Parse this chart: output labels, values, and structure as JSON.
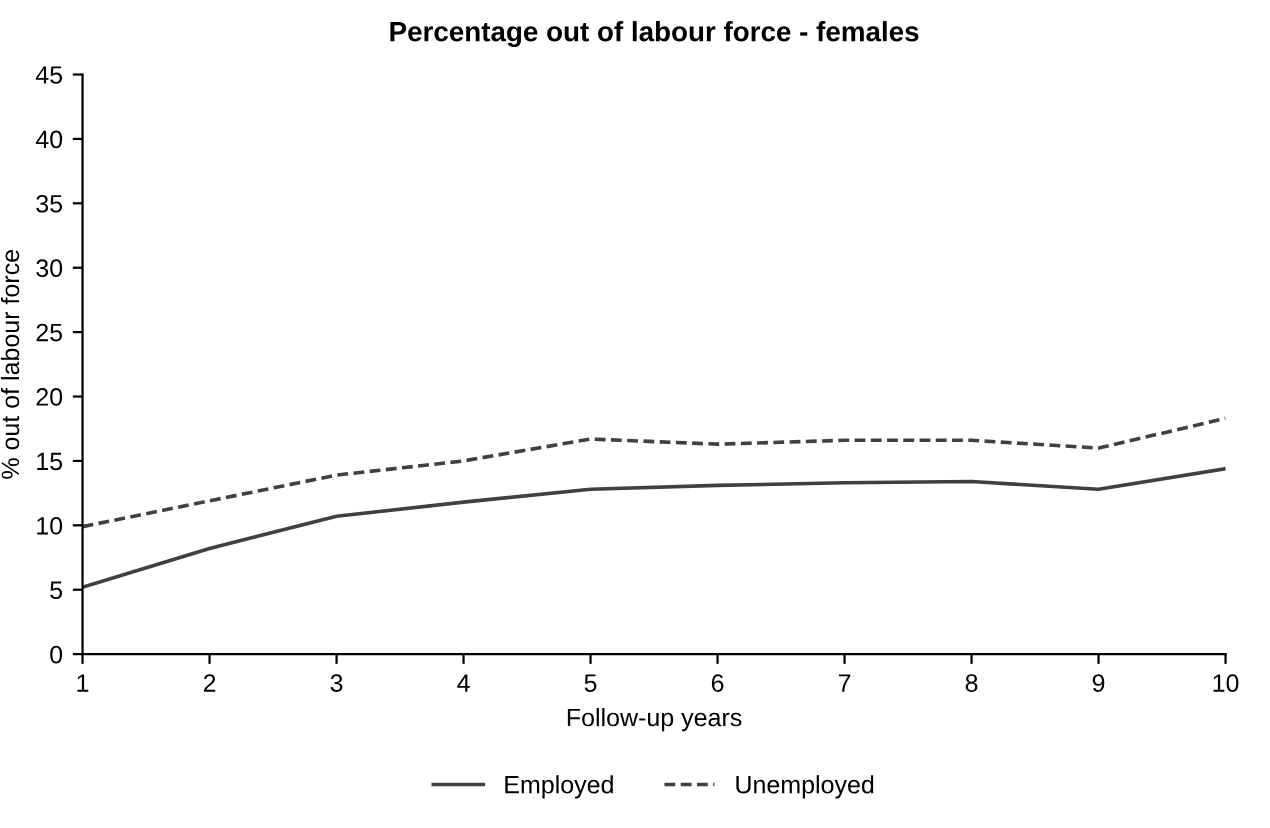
{
  "chart_data": {
    "type": "line",
    "title": "Percentage out of labour force - females",
    "xlabel": "Follow-up years",
    "ylabel": "% out of labour force",
    "x": [
      1,
      2,
      3,
      4,
      5,
      6,
      7,
      8,
      9,
      10
    ],
    "series": [
      {
        "name": "Employed",
        "color": "#404040",
        "line_style": "solid",
        "values": [
          5.2,
          8.2,
          10.7,
          11.8,
          12.8,
          13.1,
          13.3,
          13.4,
          12.8,
          14.4
        ]
      },
      {
        "name": "Unemployed",
        "color": "#404040",
        "line_style": "dashed",
        "values": [
          9.9,
          11.9,
          13.9,
          15.0,
          16.7,
          16.3,
          16.6,
          16.6,
          16.0,
          18.3
        ]
      }
    ],
    "xlim": [
      1,
      10
    ],
    "xticks": [
      1,
      2,
      3,
      4,
      5,
      6,
      7,
      8,
      9,
      10
    ],
    "ylim": [
      0,
      45
    ],
    "yticks": [
      0,
      5,
      10,
      15,
      20,
      25,
      30,
      35,
      40,
      45
    ],
    "grid": false,
    "legend": "bottom",
    "marker": "none"
  }
}
